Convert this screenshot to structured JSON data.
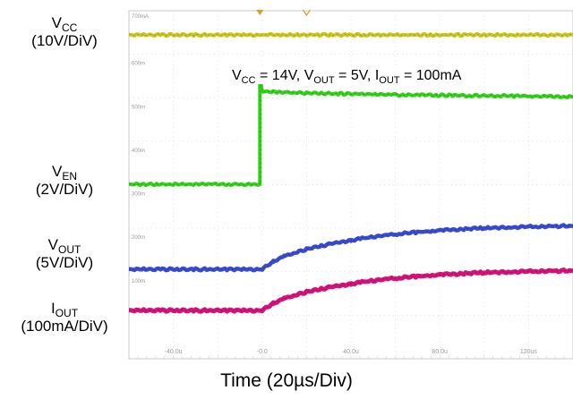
{
  "chart_data": {
    "type": "line",
    "xlabel": "Time (20µs/Div)",
    "condition": {
      "vcc": "V",
      "vcc_sub": "CC",
      "vcc_val": " = 14V, ",
      "vout": "V",
      "vout_sub": "OUT",
      "vout_val": " = 5V, ",
      "iout": "I",
      "iout_sub": "OUT",
      "iout_val": " = 100mA"
    },
    "x_ticks": [
      "-40.0u",
      "-0.0",
      "40.0u",
      "80.0u",
      "120us"
    ],
    "x_tick_values": [
      -40,
      0,
      40,
      80,
      120
    ],
    "y_tick_labels": [
      "700mA",
      "600m",
      "500m",
      "400m",
      "300m",
      "200m",
      "100m"
    ],
    "xlim": [
      -60,
      140
    ],
    "x_unit": "us",
    "channel_scales": {
      "VCC": "10V/DiV",
      "VEN": "2V/DiV",
      "VOUT": "5V/DiV",
      "IOUT": "100mA/DiV"
    },
    "series": [
      {
        "name": "VCC",
        "label_main": "V",
        "label_sub": "CC",
        "label_scale": "(10V/DiV)",
        "color": "#c9c71a",
        "x": [
          -60,
          140
        ],
        "y": [
          14,
          14
        ]
      },
      {
        "name": "VEN",
        "label_main": "V",
        "label_sub": "EN",
        "label_scale": "(2V/DiV)",
        "color": "#33d11a",
        "x": [
          -60,
          -1,
          -1,
          0,
          20,
          60,
          100,
          140
        ],
        "y": [
          0,
          0,
          6.1,
          5.2,
          5.1,
          5.0,
          4.95,
          4.9
        ]
      },
      {
        "name": "VOUT",
        "label_main": "V",
        "label_sub": "OUT",
        "label_scale": "(5V/DiV)",
        "color": "#3a4bd0",
        "x": [
          -60,
          0,
          5,
          10,
          20,
          30,
          40,
          50,
          60,
          80,
          100,
          120,
          140
        ],
        "y": [
          0,
          0,
          0.9,
          1.5,
          2.3,
          2.85,
          3.3,
          3.7,
          4.0,
          4.45,
          4.7,
          4.85,
          4.95
        ]
      },
      {
        "name": "IOUT",
        "label_main": "I",
        "label_sub": "OUT",
        "label_scale": "(100mA/DiV)",
        "color": "#d4137a",
        "x": [
          -60,
          0,
          5,
          10,
          20,
          30,
          40,
          50,
          60,
          80,
          100,
          120,
          140
        ],
        "y": [
          0,
          0,
          18,
          30,
          46,
          57,
          66,
          74,
          80,
          89,
          94,
          97,
          99
        ]
      }
    ]
  }
}
